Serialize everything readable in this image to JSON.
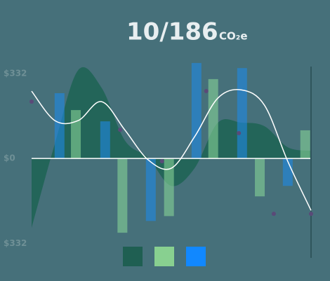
{
  "chart_data": {
    "type": "combo",
    "title": "10/186",
    "unit": "CO₂e",
    "xlim": [
      0,
      12
    ],
    "ylim": [
      -380,
      400
    ],
    "yticks": [
      {
        "value": 332,
        "label": "$332"
      },
      {
        "value": 0,
        "label": "$0"
      },
      {
        "value": -332,
        "label": "$332"
      }
    ],
    "area": {
      "color": "#1f6455",
      "x": [
        0,
        1,
        2,
        3,
        4,
        5,
        6,
        7,
        8,
        9,
        10,
        11,
        12
      ],
      "values": [
        -271,
        58,
        345,
        277,
        71,
        3,
        -107,
        -38,
        140,
        140,
        126,
        44,
        30
      ]
    },
    "bars": [
      {
        "color": "#86d296",
        "x": [
          1.9,
          3.9,
          5.9,
          7.8,
          9.8,
          11.75
        ],
        "values": [
          189,
          -290,
          -225,
          310,
          -148,
          110
        ]
      },
      {
        "color": "#1e88e5",
        "x": [
          1.2,
          3.16,
          5.12,
          7.08,
          9.04,
          11
        ],
        "values": [
          255,
          145,
          -244,
          373,
          353,
          -107
        ]
      }
    ],
    "line": {
      "color": "#ffffff",
      "x": [
        0,
        1,
        2,
        3,
        4,
        5,
        6,
        7,
        8,
        9,
        10,
        11,
        12
      ],
      "values": [
        263,
        148,
        148,
        222,
        112,
        -5,
        -38,
        85,
        236,
        268,
        208,
        -11,
        -203
      ]
    },
    "dots": {
      "color": "#5a4a78",
      "x": [
        0,
        3.8,
        5.6,
        7.5,
        8.9,
        10.4,
        12
      ],
      "values": [
        222,
        112,
        -11,
        263,
        99,
        -216,
        -216
      ]
    },
    "legend_colors": [
      "#1f5f52",
      "#88d090",
      "#1188ff"
    ]
  }
}
